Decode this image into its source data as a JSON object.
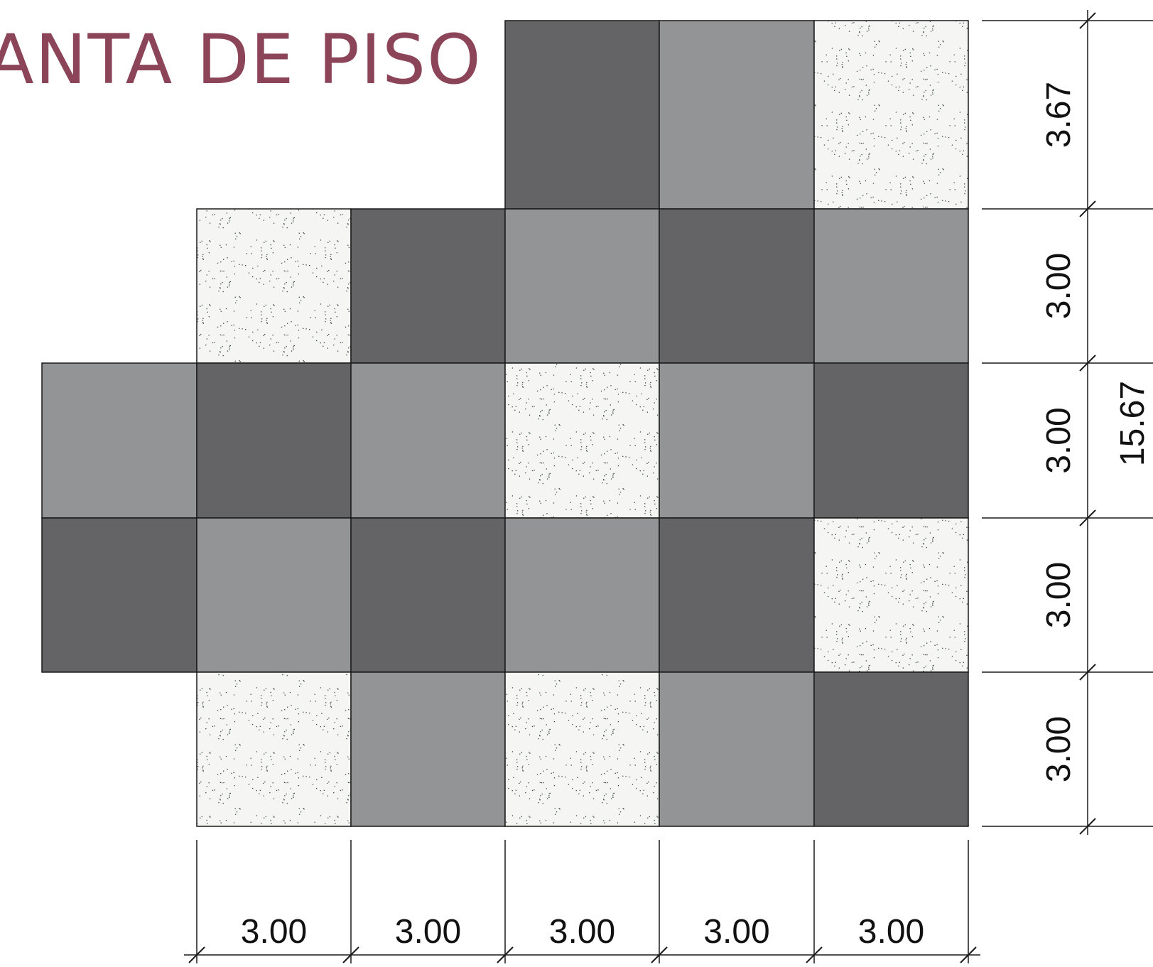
{
  "title": "ANTA DE PISO",
  "colors": {
    "title": "#8b4458",
    "dark": "#646466",
    "medium": "#939496",
    "speckled": "#f5f5f3",
    "speckle_dot": "#3a4a44",
    "line": "#1a1a1a"
  },
  "legend_tones": [
    "dark-gray-tile",
    "medium-gray-tile",
    "speckled-tile"
  ],
  "grid": {
    "rows": [
      [
        "",
        "",
        "",
        "dark",
        "medium",
        "speckled"
      ],
      [
        "",
        "speckled",
        "dark",
        "medium",
        "dark",
        "medium"
      ],
      [
        "medium",
        "dark",
        "medium",
        "speckled",
        "medium",
        "dark"
      ],
      [
        "dark",
        "medium",
        "dark",
        "medium",
        "dark",
        "speckled"
      ],
      [
        "",
        "speckled",
        "medium",
        "speckled",
        "medium",
        "dark"
      ]
    ]
  },
  "dimensions": {
    "horizontal": [
      "3.00",
      "3.00",
      "3.00",
      "3.00",
      "3.00"
    ],
    "vertical": [
      "3.67",
      "3.00",
      "3.00",
      "3.00",
      "3.00"
    ],
    "total_vertical": "15.67"
  }
}
